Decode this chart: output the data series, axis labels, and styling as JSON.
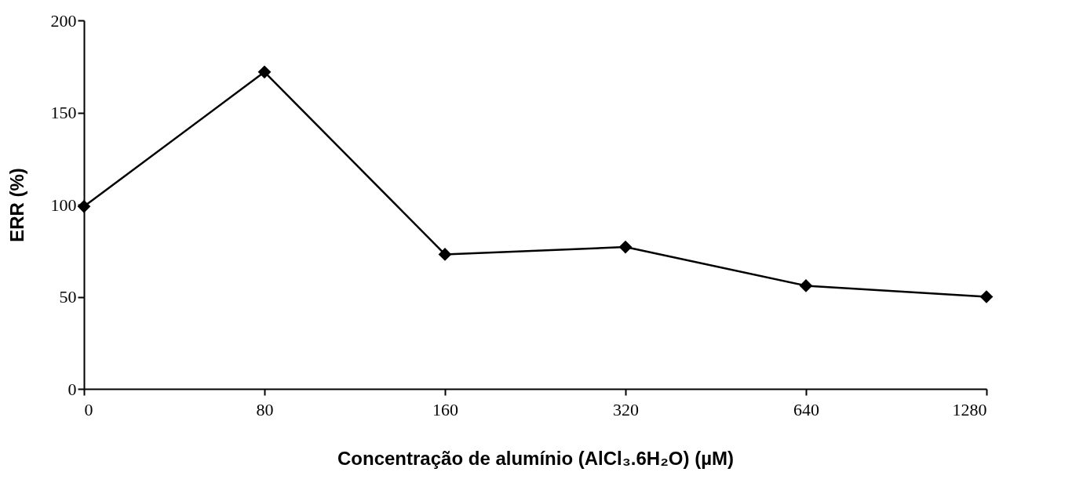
{
  "chart_data": {
    "type": "line",
    "xlabel": "Concentração  de alumínio (AlCl₃.6H₂O)  (µM)",
    "ylabel": "ERR (%)",
    "categories": [
      "0",
      "80",
      "160",
      "320",
      "640",
      "1280"
    ],
    "series": [
      {
        "color": "#000000",
        "values": [
          99,
          172,
          73,
          77,
          56,
          50
        ]
      }
    ],
    "ylim": [
      0,
      200
    ],
    "yticks": [
      0,
      50,
      100,
      150,
      200
    ],
    "marker": "diamond",
    "line_style": "solid",
    "grid": false
  }
}
